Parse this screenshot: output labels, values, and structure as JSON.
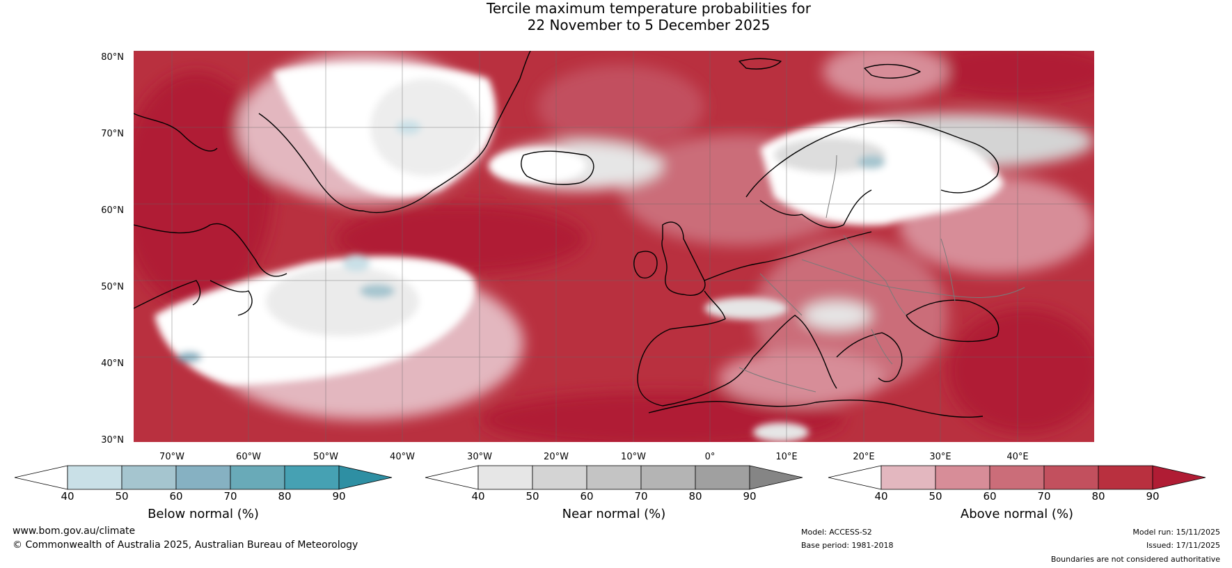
{
  "title": {
    "line1": "Tercile maximum temperature probabilities for",
    "line2": "22 November to 5 December 2025"
  },
  "map": {
    "lat_labels": [
      "80°N",
      "70°N",
      "60°N",
      "50°N",
      "40°N",
      "30°N"
    ],
    "lon_labels": [
      "70°W",
      "60°W",
      "50°W",
      "40°W",
      "30°W",
      "20°W",
      "10°W",
      "0°",
      "10°E",
      "20°E",
      "30°E",
      "40°E"
    ],
    "lon_range": [
      -75,
      50
    ],
    "lat_range": [
      30,
      81
    ]
  },
  "legends": [
    {
      "title": "Below normal (%)",
      "ticks": [
        "40",
        "50",
        "60",
        "70",
        "80",
        "90"
      ],
      "colors": [
        "#ffffff",
        "#c9e0e7",
        "#a5c5cf",
        "#86b1c2",
        "#69aab8",
        "#46a1b3",
        "#2e8fa3"
      ]
    },
    {
      "title": "Near normal (%)",
      "ticks": [
        "40",
        "50",
        "60",
        "70",
        "80",
        "90"
      ],
      "colors": [
        "#ffffff",
        "#e6e6e6",
        "#d4d4d4",
        "#c4c4c4",
        "#b4b4b4",
        "#a0a0a0",
        "#858585"
      ]
    },
    {
      "title": "Above normal (%)",
      "ticks": [
        "40",
        "50",
        "60",
        "70",
        "80",
        "90"
      ],
      "colors": [
        "#ffffff",
        "#e3b7bf",
        "#d78d98",
        "#cb6d79",
        "#c2505e",
        "#b9303f",
        "#b01c34"
      ]
    }
  ],
  "footer": {
    "website": "www.bom.gov.au/climate",
    "copyright": "© Commonwealth of Australia 2025, Australian Bureau of Meteorology",
    "model": "Model: ACCESS-S2",
    "base_period": "Base period: 1981-2018",
    "model_run": "Model run: 15/11/2025",
    "issued": "Issued: 17/11/2025",
    "disclaimer": "Boundaries are not considered authoritative"
  }
}
